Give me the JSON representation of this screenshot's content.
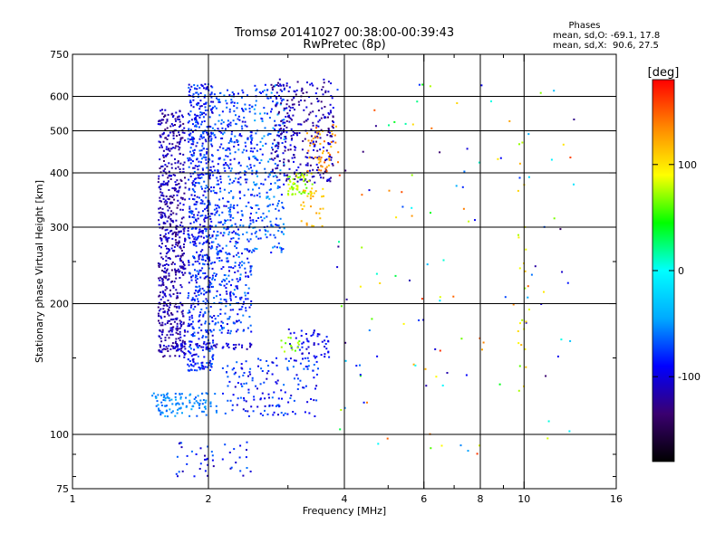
{
  "chart_data": {
    "type": "scatter",
    "title": "Tromsø 20141027 00:38:00-00:39:43",
    "subtitle": "RwPretec (8p)",
    "xlabel": "Frequency [MHz]",
    "ylabel": "Stationary phase Virtual Height [km]",
    "x_scale": "log",
    "y_scale": "log",
    "xlim": [
      1,
      16
    ],
    "ylim": [
      75,
      750
    ],
    "x_ticks": [
      "1",
      "2",
      "4",
      "6",
      "8",
      "10",
      "16"
    ],
    "x_tick_values": [
      1,
      2,
      4,
      6,
      8,
      10,
      16
    ],
    "y_ticks": [
      "75",
      "100",
      "200",
      "300",
      "400",
      "500",
      "600",
      "750"
    ],
    "y_tick_values": [
      75,
      100,
      200,
      300,
      400,
      500,
      600,
      750
    ],
    "x_minor_ticks": [
      3,
      5,
      7,
      9
    ],
    "y_minor_ticks": [
      80,
      90,
      150,
      250
    ],
    "x_grid": [
      2,
      4,
      6,
      8,
      10
    ],
    "y_grid": [
      100,
      200,
      300,
      400,
      500,
      600
    ],
    "grid": true,
    "stats": {
      "heading": "Phases",
      "line1": "mean, sd,O: -69.1, 17.8",
      "line2": "mean, sd,X:  90.6, 27.5"
    },
    "colorbar": {
      "label": "[deg]",
      "range": [
        -180,
        180
      ],
      "ticks": [
        "100",
        "0",
        "-100"
      ],
      "tick_values": [
        100,
        0,
        -100
      ],
      "colors": [
        "#000000",
        "#3a0070",
        "#0000ff",
        "#00aaff",
        "#00ffff",
        "#00ff00",
        "#ffff00",
        "#ff8800",
        "#ff0000"
      ]
    },
    "clusters": [
      {
        "f": [
          1.55,
          1.78
        ],
        "h": [
          150,
          560
        ],
        "phase": [
          -135,
          -95
        ],
        "n": 650
      },
      {
        "f": [
          1.8,
          2.05
        ],
        "h": [
          140,
          640
        ],
        "phase": [
          -110,
          -60
        ],
        "n": 700
      },
      {
        "f": [
          2.05,
          2.5
        ],
        "h": [
          170,
          620
        ],
        "phase": [
          -105,
          -50
        ],
        "n": 520
      },
      {
        "f": [
          2.5,
          2.95
        ],
        "h": [
          260,
          640
        ],
        "phase": [
          -90,
          -40
        ],
        "n": 220
      },
      {
        "f": [
          2.75,
          3.8
        ],
        "h": [
          380,
          660
        ],
        "phase": [
          -135,
          -90
        ],
        "n": 320
      },
      {
        "f": [
          3.0,
          3.4
        ],
        "h": [
          355,
          400
        ],
        "phase": [
          55,
          95
        ],
        "n": 60
      },
      {
        "f": [
          3.3,
          3.9
        ],
        "h": [
          400,
          520
        ],
        "phase": [
          110,
          150
        ],
        "n": 50
      },
      {
        "f": [
          3.2,
          3.6
        ],
        "h": [
          300,
          370
        ],
        "phase": [
          100,
          130
        ],
        "n": 30
      },
      {
        "f": [
          1.5,
          2.1
        ],
        "h": [
          110,
          125
        ],
        "phase": [
          -70,
          -40
        ],
        "n": 110
      },
      {
        "f": [
          2.15,
          3.5
        ],
        "h": [
          110,
          150
        ],
        "phase": [
          -110,
          -60
        ],
        "n": 160
      },
      {
        "f": [
          3.0,
          3.7
        ],
        "h": [
          150,
          175
        ],
        "phase": [
          -110,
          -80
        ],
        "n": 50
      },
      {
        "f": [
          2.9,
          3.2
        ],
        "h": [
          155,
          168
        ],
        "phase": [
          55,
          80
        ],
        "n": 14
      },
      {
        "f": [
          1.65,
          2.5
        ],
        "h": [
          157,
          162
        ],
        "phase": [
          -120,
          -90
        ],
        "n": 45
      },
      {
        "f": [
          1.7,
          2.5
        ],
        "h": [
          80,
          96
        ],
        "phase": [
          -120,
          -60
        ],
        "n": 45
      },
      {
        "f": [
          3.8,
          13.0
        ],
        "h": [
          90,
          650
        ],
        "phase": [
          -140,
          170
        ],
        "n": 130
      },
      {
        "f": [
          9.7,
          10.1
        ],
        "h": [
          120,
          520
        ],
        "phase": [
          60,
          120
        ],
        "n": 25
      }
    ]
  }
}
